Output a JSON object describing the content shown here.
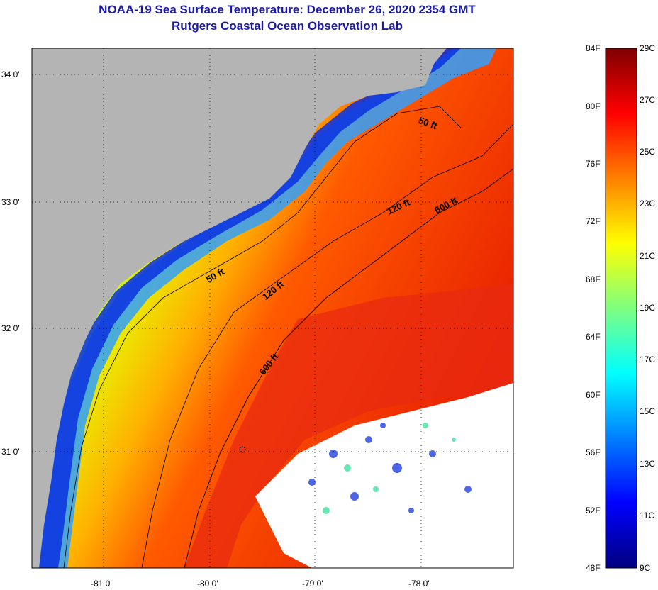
{
  "title": "NOAA-19 Sea Surface Temperature:  December 26, 2020 2354 GMT",
  "subtitle": "Rutgers Coastal Ocean Observation Lab",
  "map": {
    "lat_labels": [
      "34 0'",
      "33 0'",
      "32 0'",
      "31 0'"
    ],
    "lon_labels": [
      "-81 0'",
      "-80 0'",
      "-79 0'",
      "-78 0'"
    ],
    "depth_contours": [
      {
        "label": "50 ft"
      },
      {
        "label": "50 ft"
      },
      {
        "label": "120 ft"
      },
      {
        "label": "120 ft"
      },
      {
        "label": "600 ft"
      },
      {
        "label": "600 ft"
      }
    ],
    "colors": {
      "land": "#b4b4b4",
      "cloud": "#ffffff",
      "gridline": "#000000"
    }
  },
  "colorbar": {
    "fahrenheit_labels": [
      "84F",
      "80F",
      "76F",
      "72F",
      "68F",
      "64F",
      "60F",
      "56F",
      "52F",
      "48F"
    ],
    "celsius_labels": [
      "29C",
      "27C",
      "25C",
      "23C",
      "21C",
      "19C",
      "17C",
      "15C",
      "13C",
      "11C",
      "9C"
    ],
    "colormap": "jet",
    "range_f": [
      48,
      84
    ],
    "range_c": [
      9,
      29
    ]
  }
}
